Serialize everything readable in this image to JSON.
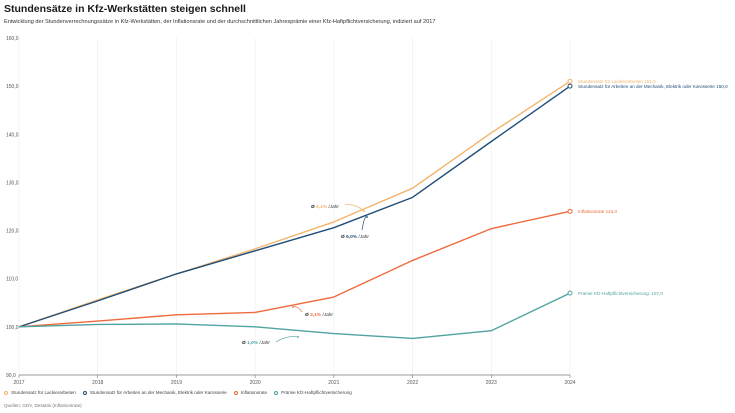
{
  "header": {
    "title": "Stundensätze in Kfz-Werkstätten steigen schnell",
    "subtitle": "Entwicklung der Stundenverrechnungssätze in Kfz-Werkstätten, der Inflationsrate und der durchschnittlichen Jahresprämie einer Kfz-Haftpflichtversicherung, indiziert auf 2017"
  },
  "footer": {
    "source": "Quellen: GDV, Destatis (Inflationsrate)"
  },
  "chart_data": {
    "type": "line",
    "title": "Stundensätze in Kfz-Werkstätten steigen schnell",
    "xlabel": "",
    "ylabel": "",
    "x": [
      "2017",
      "2018",
      "2019",
      "2020",
      "2021",
      "2022",
      "2023",
      "2024"
    ],
    "ylim": [
      90,
      160
    ],
    "yticks": [
      90,
      100,
      110,
      120,
      130,
      140,
      150,
      160
    ],
    "ytick_labels": [
      "90,0",
      "100,0",
      "110,0",
      "120,0",
      "130,0",
      "140,0",
      "150,0",
      "160,0"
    ],
    "grid": "vertical",
    "legend_position": "bottom-left",
    "series": [
      {
        "name": "Stundensatz für Lackierarbeiten",
        "color": "#f2b46a",
        "values": [
          100,
          105.6,
          111.0,
          116.2,
          121.8,
          128.8,
          140.3,
          151.0
        ],
        "end_label": "Stundensatz für Lackierarbeiten 151,0"
      },
      {
        "name": "Stundensatz für Arbeiten an der Mechanik, Elektrik oder Karosserie",
        "color": "#1f4e79",
        "values": [
          100,
          105.4,
          111.0,
          115.8,
          120.6,
          126.9,
          138.5,
          150.0
        ],
        "end_label": "Stundensatz für Arbeiten an der Mechanik, Elektrik oder Karosserie 150,0"
      },
      {
        "name": "Inflationsrate",
        "color": "#ee6a3c",
        "values": [
          100,
          101.2,
          102.5,
          103.0,
          106.2,
          113.8,
          120.4,
          124.0
        ],
        "end_label": "Inflationsrate 124,0"
      },
      {
        "name": "Prämie Kfz-Haftpflichtversicherung",
        "color": "#4fa3a0",
        "values": [
          100,
          100.5,
          100.6,
          100.0,
          98.6,
          97.6,
          99.2,
          107.0
        ],
        "end_label": "Prämie Kfz-Haftpflichtversicherung: 107,0"
      }
    ],
    "annotations": [
      {
        "prefix": "Ø",
        "value": "6,1%",
        "suffix": "/Jahr",
        "series": 0
      },
      {
        "prefix": "Ø",
        "value": "6,0%",
        "suffix": "/Jahr",
        "series": 1
      },
      {
        "prefix": "Ø",
        "value": "3,1%",
        "suffix": "/Jahr",
        "series": 2
      },
      {
        "prefix": "Ø",
        "value": "1,0%",
        "suffix": "/Jahr",
        "series": 3
      }
    ]
  }
}
